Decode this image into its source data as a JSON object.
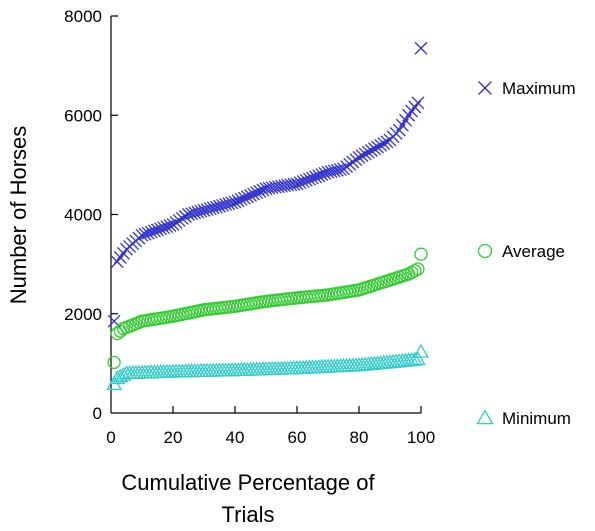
{
  "chart_data": {
    "type": "scatter",
    "title": "",
    "xlabel_lines": [
      "Cumulative Percentage of",
      "Trials"
    ],
    "ylabel": "Number of Horses",
    "xlim": [
      0,
      100
    ],
    "ylim": [
      0,
      8000
    ],
    "x_ticks": [
      "0",
      "20",
      "40",
      "60",
      "80",
      "100"
    ],
    "y_ticks": [
      "0",
      "2000",
      "4000",
      "6000",
      "8000"
    ],
    "grid": false,
    "legend_position": "right",
    "series": [
      {
        "name": "Maximum",
        "marker": "x",
        "color": "#3333cc",
        "anchors": [
          [
            1,
            1850
          ],
          [
            2,
            3050
          ],
          [
            5,
            3300
          ],
          [
            10,
            3580
          ],
          [
            20,
            3800
          ],
          [
            25,
            4000
          ],
          [
            40,
            4250
          ],
          [
            50,
            4520
          ],
          [
            60,
            4620
          ],
          [
            70,
            4850
          ],
          [
            75,
            4920
          ],
          [
            80,
            5150
          ],
          [
            90,
            5500
          ],
          [
            93,
            5700
          ],
          [
            96,
            6000
          ],
          [
            99,
            6250
          ],
          [
            100,
            7350
          ]
        ]
      },
      {
        "name": "Average",
        "marker": "o",
        "color": "#33cc33",
        "anchors": [
          [
            1,
            1020
          ],
          [
            2,
            1600
          ],
          [
            4,
            1700
          ],
          [
            10,
            1850
          ],
          [
            20,
            1950
          ],
          [
            30,
            2080
          ],
          [
            40,
            2150
          ],
          [
            50,
            2250
          ],
          [
            60,
            2320
          ],
          [
            70,
            2380
          ],
          [
            80,
            2480
          ],
          [
            90,
            2680
          ],
          [
            96,
            2800
          ],
          [
            99,
            2900
          ],
          [
            100,
            3200
          ]
        ]
      },
      {
        "name": "Minimum",
        "marker": "triangle",
        "color": "#33cccc",
        "anchors": [
          [
            1,
            580
          ],
          [
            2,
            700
          ],
          [
            5,
            800
          ],
          [
            20,
            830
          ],
          [
            40,
            860
          ],
          [
            60,
            900
          ],
          [
            80,
            960
          ],
          [
            95,
            1050
          ],
          [
            99,
            1080
          ],
          [
            100,
            1230
          ]
        ]
      }
    ]
  }
}
